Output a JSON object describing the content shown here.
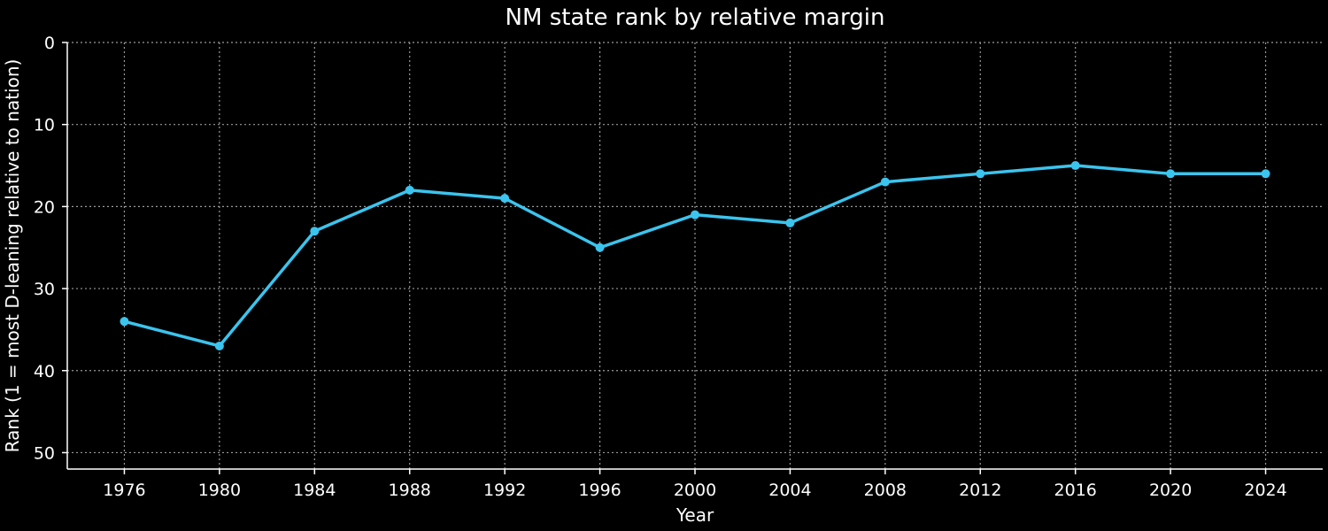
{
  "colors": {
    "background": "#000000",
    "series": "#3bc4ee",
    "text": "#ffffff",
    "grid": "#9a9a9a"
  },
  "chart_data": {
    "type": "line",
    "title": "NM state rank by relative margin",
    "xlabel": "Year",
    "ylabel": "Rank (1 = most D-leaning relative to nation)",
    "x": [
      1976,
      1980,
      1984,
      1988,
      1992,
      1996,
      2000,
      2004,
      2008,
      2012,
      2016,
      2020,
      2024
    ],
    "series": [
      {
        "values": [
          34,
          37,
          23,
          18,
          19,
          25,
          21,
          22,
          17,
          16,
          15,
          16,
          16
        ]
      }
    ],
    "xlim": [
      1973.6,
      2026.4
    ],
    "ylim": [
      52,
      0
    ],
    "y_inverted": true,
    "yticks": [
      0,
      10,
      20,
      30,
      40,
      50
    ],
    "grid": true,
    "markers": true
  }
}
